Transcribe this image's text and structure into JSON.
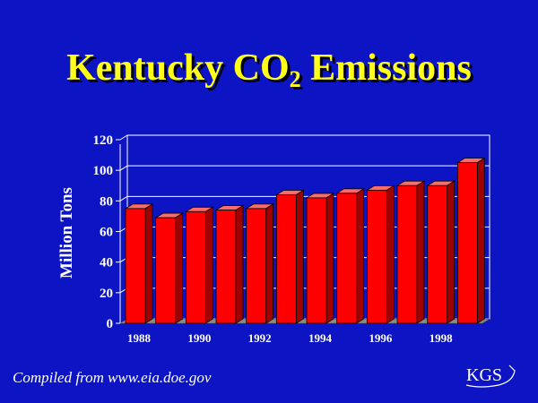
{
  "title": {
    "main": "Kentucky CO",
    "sub": "2",
    "tail": " Emissions"
  },
  "footer": "Compiled from www.eia.doe.gov",
  "logo": "KGS",
  "colors": {
    "background": "#0c14c4",
    "title": "#ffff1a",
    "bar_front": "#ff0000",
    "bar_side": "#a00000",
    "bar_top": "#ff6a6a",
    "grid": "#ffffff"
  },
  "chart_data": {
    "type": "bar",
    "categories": [
      "1988",
      "1989",
      "1990",
      "1991",
      "1992",
      "1993",
      "1994",
      "1995",
      "1996",
      "1997",
      "1998",
      "1999"
    ],
    "tick_labels": [
      "1988",
      "1990",
      "1992",
      "1994",
      "1996",
      "1998"
    ],
    "values": [
      75,
      69,
      73,
      74,
      75,
      84,
      82,
      85,
      87,
      90,
      90,
      105
    ],
    "ylabel": "Million Tons",
    "xlabel": "",
    "ylim": [
      0,
      120
    ],
    "yticks": [
      "0",
      "20",
      "40",
      "60",
      "80",
      "100",
      "120"
    ],
    "grid": true
  }
}
